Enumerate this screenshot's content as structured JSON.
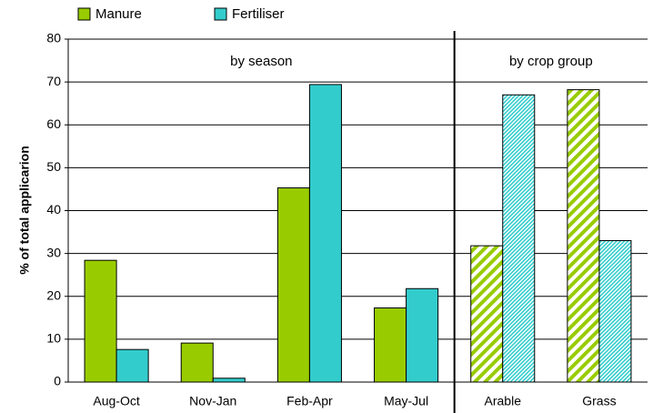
{
  "chart_data": {
    "type": "bar",
    "y_axis_label": "% of total applicarion",
    "categories": [
      "Aug-Oct",
      "Nov-Jan",
      "Feb-Apr",
      "May-Jul",
      "Arable",
      "Grass"
    ],
    "groups": [
      {
        "label": "by season",
        "categories": 4
      },
      {
        "label": "by crop group",
        "categories": 2,
        "hatched": true
      }
    ],
    "series": [
      {
        "name": "Manure",
        "color": "#99cc00",
        "values": [
          28.4,
          9.1,
          45.3,
          17.3,
          31.8,
          68.2
        ]
      },
      {
        "name": "Fertiliser",
        "color": "#33cccc",
        "values": [
          7.6,
          0.9,
          69.4,
          21.8,
          67.0,
          33.0
        ]
      }
    ],
    "ylim": [
      0,
      80
    ],
    "yticks": [
      0,
      10,
      20,
      30,
      40,
      50,
      60,
      70,
      80
    ],
    "grid": true,
    "legend": "top-left"
  }
}
